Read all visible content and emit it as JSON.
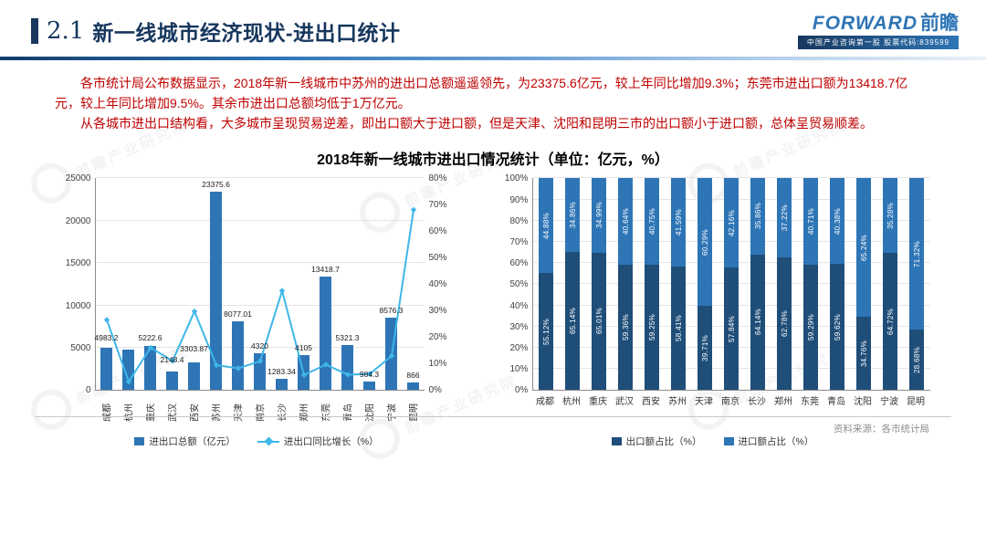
{
  "header": {
    "section_number": "2.1",
    "title": "新一线城市经济现状-进出口统计",
    "logo": {
      "brand_en": "FORWARD",
      "brand_cn": "前瞻",
      "tagline": "中国产业咨询第一股  股票代码:839599"
    }
  },
  "paragraphs": [
    "各市统计局公布数据显示，2018年新一线城市中苏州的进出口总额遥遥领先，为23375.6亿元，较上年同比增加9.3%；东莞市进出口额为13418.7亿元，较上年同比增加9.5%。其余市进出口总额均低于1万亿元。",
    "从各城市进出口结构看，大多城市呈现贸易逆差，即出口额大于进口额，但是天津、沈阳和昆明三市的出口额小于进口额，总体呈贸易顺差。"
  ],
  "figure_title": "2018年新一线城市进出口情况统计（单位：亿元，%）",
  "source_note": "资料来源：各市统计局",
  "watermark_text": "前瞻产业研究院",
  "colors": {
    "title_navy": "#17375E",
    "body_red": "#BF0000",
    "bar_blue": "#2E75B6",
    "line_cyan": "#3EB7E8",
    "export_navy": "#1F4E79"
  },
  "chart_data": [
    {
      "type": "bar",
      "subtype": "bar+line-combo",
      "categories": [
        "成都",
        "杭州",
        "重庆",
        "武汉",
        "西安",
        "苏州",
        "天津",
        "南京",
        "长沙",
        "郑州",
        "东莞",
        "青岛",
        "沈阳",
        "宁波",
        "昆明"
      ],
      "series": [
        {
          "name": "进出口总额（亿元）",
          "kind": "bar",
          "color": "#2E75B6",
          "values": [
            4983.2,
            4820,
            5222.6,
            2148.4,
            3303.87,
            23375.6,
            8077.01,
            4320,
            1283.34,
            4105,
            13418.7,
            5321.3,
            984.3,
            8576.3,
            866
          ],
          "data_labels": [
            "4983.2",
            "",
            "5222.6",
            "2148.4",
            "3303.87",
            "23375.6",
            "8077.01",
            "4320",
            "1283.34",
            "4105",
            "13418.7",
            "5321.3",
            "984.3",
            "8576.3",
            "866"
          ]
        },
        {
          "name": "进出口同比增长（%）",
          "kind": "line",
          "color": "#3EB7E8",
          "values": [
            26.4,
            3.1,
            15.9,
            10.9,
            29.6,
            9.3,
            8.1,
            10.8,
            37.4,
            5.6,
            9.5,
            5.7,
            6.0,
            12.8,
            68.0
          ]
        }
      ],
      "left_axis": {
        "min": 0,
        "max": 25000,
        "ticks": [
          "0",
          "5000",
          "10000",
          "15000",
          "20000",
          "25000"
        ]
      },
      "right_axis": {
        "min": 0,
        "max": 80,
        "ticks": [
          "0%",
          "10%",
          "20%",
          "30%",
          "40%",
          "50%",
          "60%",
          "70%",
          "80%"
        ]
      },
      "grid": true,
      "legend_position": "bottom"
    },
    {
      "type": "bar",
      "subtype": "stacked-100-percent",
      "categories": [
        "成都",
        "杭州",
        "重庆",
        "武汉",
        "西安",
        "苏州",
        "天津",
        "南京",
        "长沙",
        "郑州",
        "东莞",
        "青岛",
        "沈阳",
        "宁波",
        "昆明"
      ],
      "series": [
        {
          "name": "出口额占比（%）",
          "color": "#1F4E79",
          "values": [
            55.12,
            65.14,
            65.01,
            59.36,
            59.25,
            58.41,
            39.71,
            57.84,
            64.14,
            62.78,
            59.29,
            59.62,
            34.76,
            64.72,
            28.68
          ]
        },
        {
          "name": "进口额占比（%）",
          "color": "#2E75B6",
          "values": [
            44.88,
            34.86,
            34.99,
            40.64,
            40.75,
            41.59,
            60.29,
            42.16,
            35.86,
            37.22,
            40.71,
            40.38,
            65.24,
            35.28,
            71.32
          ]
        }
      ],
      "y_axis": {
        "min": 0,
        "max": 100,
        "ticks": [
          "0%",
          "10%",
          "20%",
          "30%",
          "40%",
          "50%",
          "60%",
          "70%",
          "80%",
          "90%",
          "100%"
        ]
      },
      "grid": true,
      "legend_position": "bottom"
    }
  ]
}
